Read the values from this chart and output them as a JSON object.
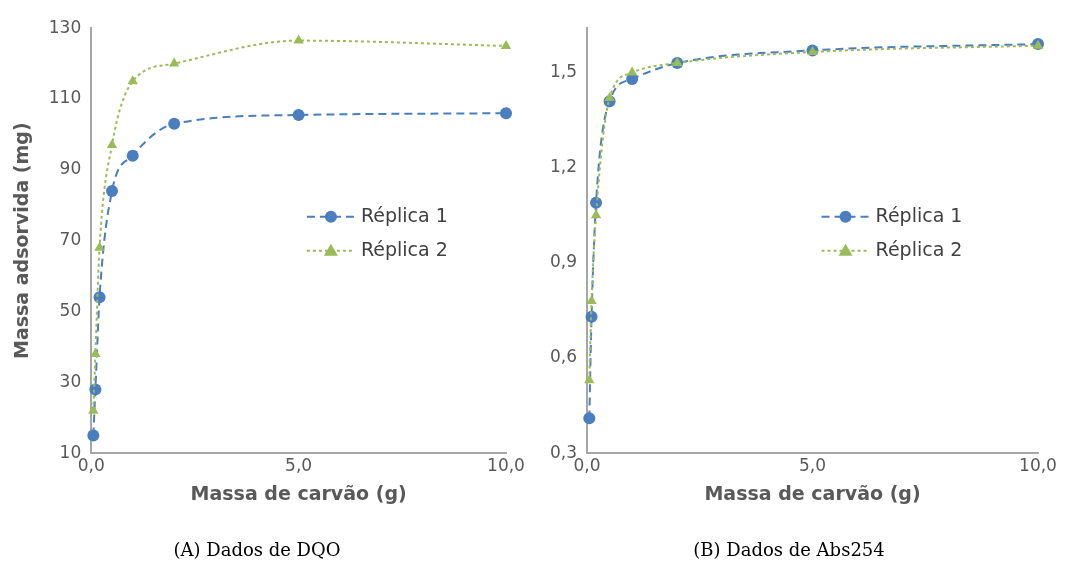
{
  "chart_data": [
    {
      "type": "line",
      "title": "(A) Dados de DQO",
      "xlabel": "Massa de carvão (g)",
      "ylabel": "Massa adsorvida (mg)",
      "x": [
        0.05,
        0.1,
        0.2,
        0.5,
        1,
        2,
        5,
        10
      ],
      "series": [
        {
          "name": "Réplica 1",
          "color": "#4a7ebf",
          "marker": "circle",
          "line_style": "dashed",
          "values": [
            15,
            28,
            54,
            84,
            94,
            103,
            105.5,
            106
          ]
        },
        {
          "name": "Réplica 2",
          "color": "#9bbb59",
          "marker": "triangle",
          "line_style": "dotted",
          "values": [
            22,
            38,
            68,
            97,
            115,
            120,
            126.5,
            125
          ]
        }
      ],
      "xlim": [
        0,
        10
      ],
      "xticks": [
        {
          "value": 0,
          "label": "0,0"
        },
        {
          "value": 5,
          "label": "5,0"
        },
        {
          "value": 10,
          "label": "10,0"
        }
      ],
      "ylim": [
        10,
        130
      ],
      "yticks": [
        10,
        30,
        50,
        70,
        90,
        110,
        130
      ],
      "grid": false,
      "legend": "right"
    },
    {
      "type": "line",
      "title": "(B) Dados de Abs254",
      "xlabel": "Massa de carvão (g)",
      "x": [
        0.05,
        0.1,
        0.2,
        0.5,
        1,
        2,
        5,
        10
      ],
      "series": [
        {
          "name": "Réplica 1",
          "color": "#4a7ebf",
          "marker": "circle",
          "line_style": "dashed",
          "values": [
            0.41,
            0.73,
            1.09,
            1.41,
            1.48,
            1.53,
            1.57,
            1.59
          ]
        },
        {
          "name": "Réplica 2",
          "color": "#9bbb59",
          "marker": "triangle",
          "line_style": "dotted",
          "values": [
            0.53,
            0.78,
            1.05,
            1.42,
            1.5,
            1.53,
            1.565,
            1.585
          ]
        }
      ],
      "xlim": [
        0,
        10
      ],
      "xticks": [
        {
          "value": 0,
          "label": "0,0"
        },
        {
          "value": 5,
          "label": "5,0"
        },
        {
          "value": 10,
          "label": "10,0"
        }
      ],
      "ylim": [
        0.3,
        1.64
      ],
      "yticks": [
        {
          "value": 0.3,
          "label": "0,3"
        },
        {
          "value": 0.6,
          "label": "0,6"
        },
        {
          "value": 0.9,
          "label": "0,9"
        },
        {
          "value": 1.2,
          "label": "1,2"
        },
        {
          "value": 1.5,
          "label": "1,5"
        }
      ],
      "grid": false,
      "legend": "right"
    }
  ]
}
